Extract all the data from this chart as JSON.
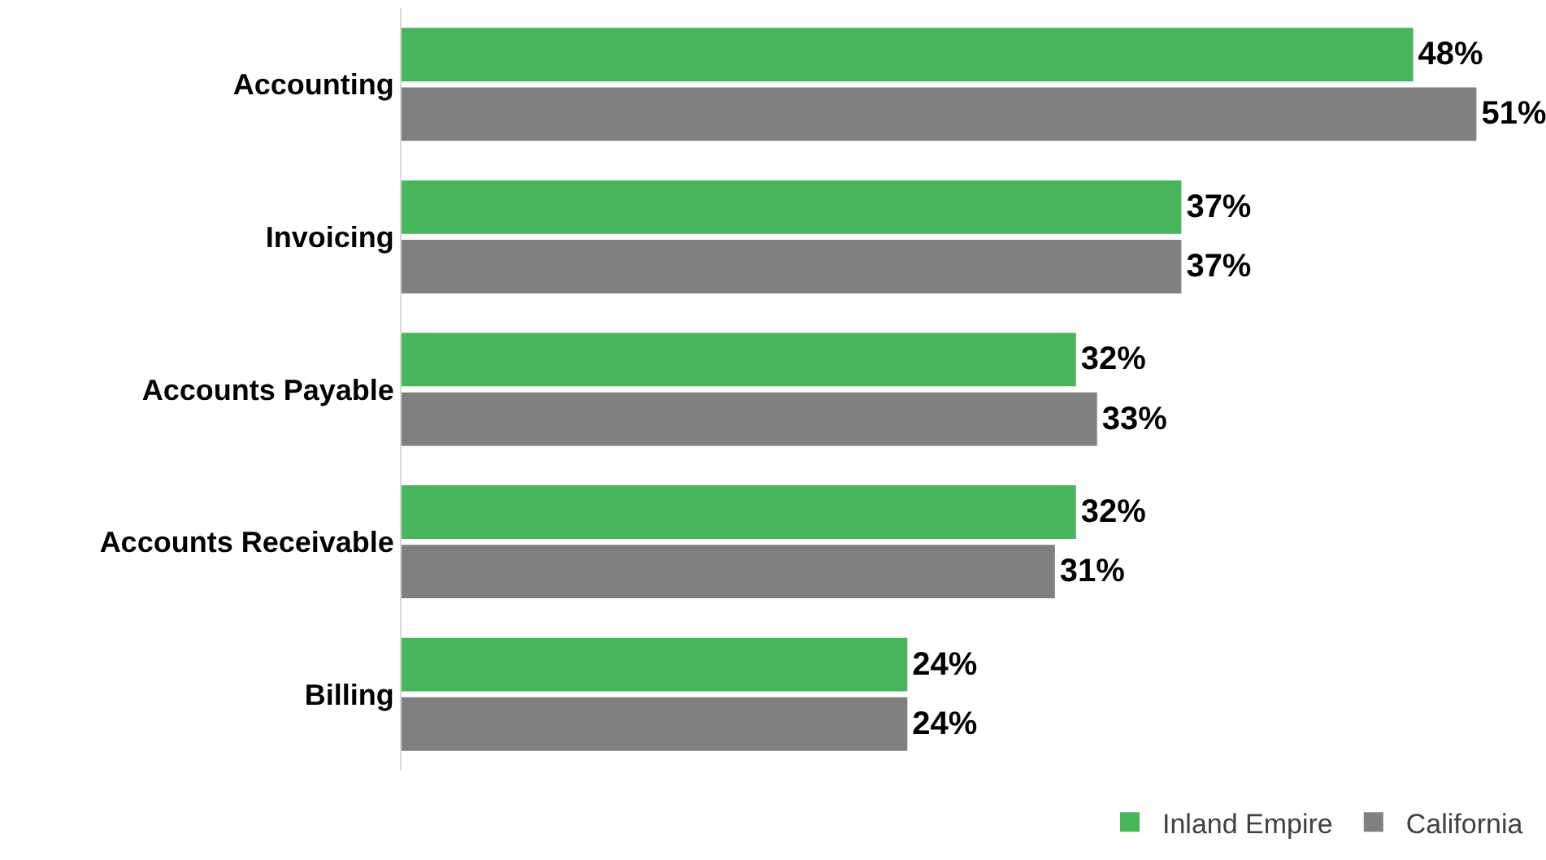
{
  "chart_data": {
    "type": "bar",
    "orientation": "horizontal",
    "categories": [
      "Accounting",
      "Invoicing",
      "Accounts Payable",
      "Accounts Receivable",
      "Billing"
    ],
    "series": [
      {
        "name": "Inland Empire",
        "color": "#47b65a",
        "values": [
          48,
          37,
          32,
          32,
          24
        ],
        "value_labels": [
          "48%",
          "37%",
          "32%",
          "32%",
          "24%"
        ]
      },
      {
        "name": "California",
        "color": "#808080",
        "values": [
          51,
          37,
          33,
          31,
          24
        ],
        "value_labels": [
          "51%",
          "37%",
          "33%",
          "31%",
          "24%"
        ]
      }
    ],
    "tick_labels": "y",
    "legend": "bottom right"
  }
}
